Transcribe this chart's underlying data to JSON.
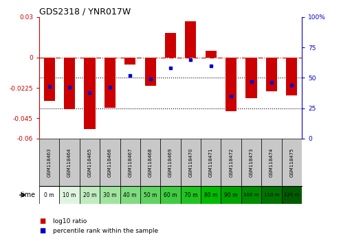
{
  "title": "GDS2318 / YNR017W",
  "samples": [
    "GSM118463",
    "GSM118464",
    "GSM118465",
    "GSM118466",
    "GSM118467",
    "GSM118468",
    "GSM118469",
    "GSM118470",
    "GSM118471",
    "GSM118472",
    "GSM118473",
    "GSM118474",
    "GSM118475"
  ],
  "time_labels": [
    "0 m",
    "10 m",
    "20 m",
    "30 m",
    "40 m",
    "50 m",
    "60 m",
    "70 m",
    "80 m",
    "90 m",
    "100 m",
    "110 m",
    "120 m"
  ],
  "log10_ratio": [
    -0.032,
    -0.038,
    -0.053,
    -0.037,
    -0.005,
    -0.021,
    0.018,
    0.027,
    0.005,
    -0.04,
    -0.03,
    -0.025,
    -0.028
  ],
  "percentile_rank": [
    43,
    42,
    38,
    42,
    52,
    49,
    58,
    65,
    60,
    35,
    47,
    46,
    44
  ],
  "ylim_left": [
    -0.06,
    0.03
  ],
  "ylim_right": [
    0,
    100
  ],
  "yticks_left": [
    0.03,
    0,
    -0.0225,
    -0.045,
    -0.06
  ],
  "yticks_right": [
    100,
    75,
    50,
    25,
    0
  ],
  "bar_color": "#cc0000",
  "dot_color": "#0000cc",
  "hline_color": "#cc0000",
  "dotted_line_color": "#000000",
  "green_colors": [
    "#ffffff",
    "#e0f5e0",
    "#c0ecc0",
    "#a0e4a0",
    "#80dc80",
    "#60d460",
    "#40cc40",
    "#20c420",
    "#00bc00",
    "#00a400",
    "#008c00",
    "#007400",
    "#005c00"
  ]
}
